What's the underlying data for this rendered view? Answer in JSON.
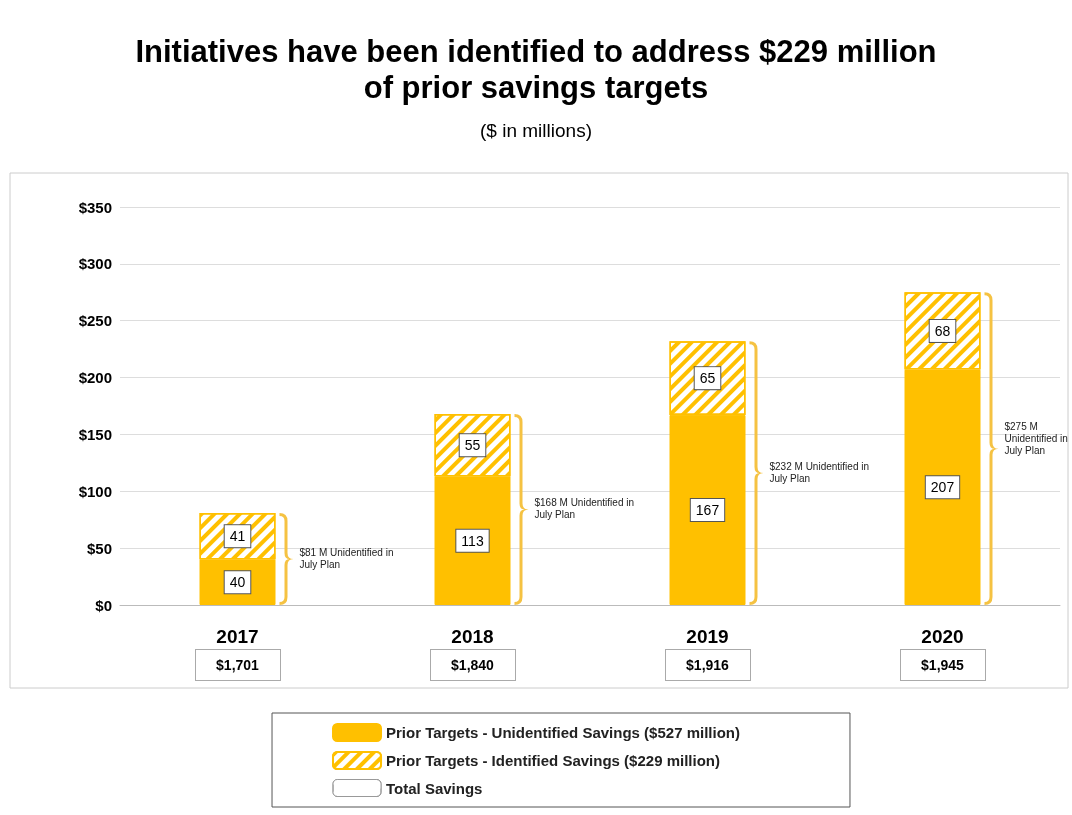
{
  "chart_data": {
    "type": "bar",
    "title": "Initiatives have been identified to address $229 million\nof prior savings targets",
    "subtitle": "($ in millions)",
    "categories": [
      "2017",
      "2018",
      "2019",
      "2020"
    ],
    "series": [
      {
        "name": "Prior Targets - Unidentified Savings ($527 million)",
        "color": "#ffc000",
        "values": [
          40,
          113,
          167,
          207
        ]
      },
      {
        "name": "Prior Targets - Identified Savings ($229 million)",
        "color": "#ffc000",
        "values": [
          41,
          55,
          65,
          68
        ]
      },
      {
        "name": "Total Savings",
        "color": "#ffffff",
        "values": [
          null,
          null,
          null,
          null
        ]
      }
    ],
    "stacked": true,
    "data_labels": true,
    "ylim": [
      0,
      350
    ],
    "yticks": [
      {
        "value": 0,
        "label": "$0"
      },
      {
        "value": 50,
        "label": "$50"
      },
      {
        "value": 100,
        "label": "$100"
      },
      {
        "value": 150,
        "label": "$150"
      },
      {
        "value": 200,
        "label": "$200"
      },
      {
        "value": 250,
        "label": "$250"
      },
      {
        "value": 300,
        "label": "$300"
      },
      {
        "value": 350,
        "label": "$350"
      }
    ],
    "grid": "y",
    "legend": "bottom",
    "annotations": [
      "$81 M Unidentified in July Plan",
      "$168 M Unidentified in July Plan",
      "$232 M Unidentified in July Plan",
      "$275 M Unidentified in July Plan",
      "$1,701",
      "$1,840",
      "$1,916",
      "$1,945"
    ]
  }
}
